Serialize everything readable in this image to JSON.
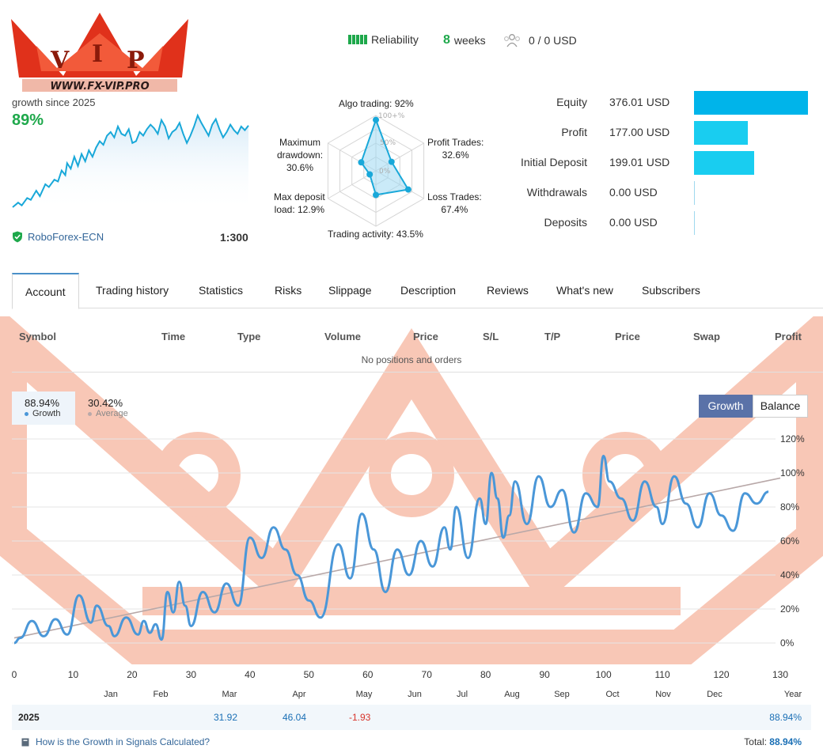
{
  "logo": {
    "text": "WWW.FX-VIP.PRO",
    "letters": "VIP"
  },
  "header": {
    "reliability_label": "Reliability",
    "weeks_value": "8",
    "weeks_label": "weeks",
    "subscribers": "0 / 0 USD"
  },
  "growth": {
    "since": "growth since 2025",
    "percent": "89%",
    "broker": "RoboForex-ECN",
    "leverage": "1:300"
  },
  "radar": {
    "algo": "Algo trading: 92%",
    "profit_trades_title": "Profit Trades:",
    "profit_trades_value": "32.6%",
    "loss_trades_title": "Loss Trades:",
    "loss_trades_value": "67.4%",
    "activity": "Trading activity: 43.5%",
    "load_title": "Max deposit",
    "load_value": "load: 12.9%",
    "dd_title1": "Maximum",
    "dd_title2": "drawdown:",
    "dd_value": "30.6%",
    "scale_100": "100+%",
    "scale_50": "50%",
    "scale_0": "0%",
    "values": [
      92,
      32.6,
      67.4,
      43.5,
      12.9,
      30.6
    ]
  },
  "money": [
    {
      "label": "Equity",
      "value": "376.01 USD",
      "amount": 376.01
    },
    {
      "label": "Profit",
      "value": "177.00 USD",
      "amount": 177.0
    },
    {
      "label": "Initial Deposit",
      "value": "199.01 USD",
      "amount": 199.01
    },
    {
      "label": "Withdrawals",
      "value": "0.00 USD",
      "amount": 0
    },
    {
      "label": "Deposits",
      "value": "0.00 USD",
      "amount": 0
    }
  ],
  "colors": {
    "accent": "#1ea84b",
    "bar_equity": "#00b4ea",
    "bar_other": "#19cdf0",
    "line": "#4a97d8",
    "toggle": "#5a72a8"
  },
  "tabs": [
    "Account",
    "Trading history",
    "Statistics",
    "Risks",
    "Slippage",
    "Description",
    "Reviews",
    "What's new",
    "Subscribers"
  ],
  "positions": {
    "headers": [
      "Symbol",
      "Time",
      "Type",
      "Volume",
      "Price",
      "S/L",
      "T/P",
      "Price",
      "Swap",
      "Profit"
    ],
    "empty": "No positions and orders"
  },
  "legend": {
    "growth_value": "88.94%",
    "growth_label": "Growth",
    "avg_value": "30.42%",
    "avg_label": "Average"
  },
  "toggle": {
    "growth": "Growth",
    "balance": "Balance"
  },
  "chart_data": [
    {
      "type": "line",
      "title": "",
      "series": [
        {
          "name": "Growth",
          "x": [
            0,
            3,
            5,
            8,
            10,
            13,
            15,
            18,
            20,
            23,
            25,
            27,
            29,
            30,
            32,
            34,
            36,
            38,
            40,
            42,
            44,
            46,
            48,
            50,
            52,
            54,
            56,
            58,
            60,
            62,
            64,
            66,
            68,
            70,
            72,
            74,
            76,
            78,
            80,
            82,
            84,
            86,
            88,
            90,
            92,
            94,
            96,
            98,
            100,
            102,
            104,
            106,
            108,
            110,
            112,
            114,
            116,
            118,
            120,
            122,
            124,
            126,
            128,
            130
          ],
          "y": [
            0,
            5,
            2,
            10,
            8,
            18,
            12,
            25,
            22,
            30,
            28,
            40,
            35,
            48,
            42,
            55,
            45,
            58,
            50,
            62,
            55,
            65,
            72,
            68,
            78,
            82,
            76,
            88,
            80,
            78,
            85,
            70,
            72,
            82,
            78,
            85,
            90,
            86,
            80,
            95,
            88,
            75,
            82,
            85,
            92,
            80,
            70,
            78,
            88,
            100,
            92,
            85,
            78,
            90,
            96,
            85,
            76,
            82,
            90,
            84,
            80,
            88,
            84,
            89
          ]
        }
      ],
      "xlim": [
        0,
        130
      ],
      "ylim": [
        0,
        100
      ]
    },
    {
      "type": "line",
      "title": "",
      "x_ticks": [
        "0",
        "10",
        "20",
        "30",
        "40",
        "50",
        "60",
        "70",
        "80",
        "90",
        "100",
        "110",
        "120",
        "130"
      ],
      "month_labels": [
        "Jan",
        "Feb",
        "Mar",
        "Apr",
        "May",
        "Jun",
        "Jul",
        "Aug",
        "Sep",
        "Oct",
        "Nov",
        "Dec",
        "Year"
      ],
      "y_ticks": [
        "0%",
        "20%",
        "40%",
        "60%",
        "80%",
        "100%",
        "120%"
      ],
      "xlim": [
        0,
        130
      ],
      "ylim": [
        0,
        120
      ],
      "series": [
        {
          "name": "Growth",
          "x": [
            0,
            1,
            3,
            5,
            7,
            9,
            11,
            13,
            14,
            16,
            17,
            19,
            21,
            22,
            23,
            24,
            25,
            26,
            27,
            28,
            29,
            30,
            32,
            34,
            36,
            38,
            40,
            42,
            44,
            46,
            48,
            50,
            52,
            55,
            57,
            59,
            61,
            63,
            65,
            67,
            69,
            71,
            73,
            74,
            75,
            77,
            79,
            80,
            81,
            82,
            83,
            84,
            85,
            87,
            89,
            91,
            93,
            95,
            97,
            99,
            100,
            101,
            103,
            105,
            107,
            109,
            110,
            112,
            114,
            116,
            118,
            120,
            122,
            124,
            126,
            128
          ],
          "y": [
            0,
            3,
            13,
            4,
            14,
            5,
            28,
            12,
            22,
            10,
            4,
            15,
            5,
            13,
            6,
            11,
            2,
            30,
            18,
            36,
            22,
            10,
            30,
            18,
            35,
            22,
            62,
            50,
            68,
            55,
            40,
            25,
            15,
            58,
            38,
            76,
            55,
            30,
            55,
            40,
            60,
            45,
            68,
            55,
            80,
            50,
            85,
            70,
            100,
            85,
            62,
            75,
            95,
            70,
            98,
            80,
            90,
            65,
            88,
            80,
            110,
            95,
            85,
            72,
            95,
            80,
            70,
            98,
            82,
            68,
            88,
            75,
            66,
            88,
            82,
            89
          ]
        },
        {
          "name": "Average",
          "x": [
            0,
            130
          ],
          "y": [
            3,
            97
          ]
        }
      ]
    }
  ],
  "year_table": {
    "year": "2025",
    "mar": "31.92",
    "apr": "46.04",
    "may": "-1.93",
    "ytd": "88.94%"
  },
  "footer": {
    "help": "How is the Growth in Signals Calculated?",
    "total_label": "Total:",
    "total_value": "88.94%"
  }
}
